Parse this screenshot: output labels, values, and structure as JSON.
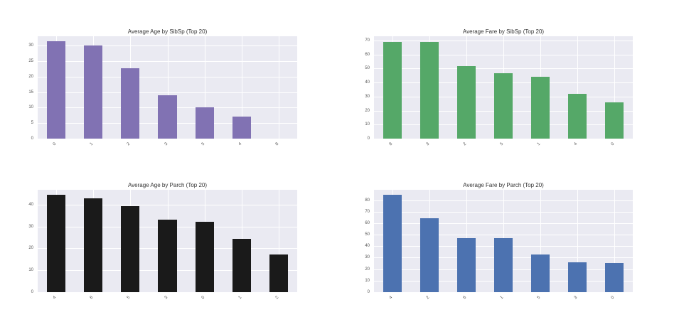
{
  "chart_data": [
    {
      "id": "age_sibsp",
      "type": "bar",
      "title": "Average Age by SibSp (Top 20)",
      "xlabel": "",
      "ylabel": "",
      "categories": [
        "0",
        "1",
        "2",
        "3",
        "5",
        "4",
        "8"
      ],
      "values": [
        31.4,
        30.1,
        22.6,
        13.9,
        10.2,
        7.2,
        0
      ],
      "yticks": [
        0,
        5,
        10,
        15,
        20,
        25,
        30
      ],
      "ylim": [
        0,
        33
      ],
      "color": "#8172b3",
      "grid": true,
      "legend": null
    },
    {
      "id": "fare_sibsp",
      "type": "bar",
      "title": "Average Fare by SibSp (Top 20)",
      "xlabel": "",
      "ylabel": "",
      "categories": [
        "8",
        "3",
        "2",
        "5",
        "1",
        "4",
        "0"
      ],
      "values": [
        69.1,
        68.9,
        51.9,
        46.9,
        44.1,
        31.9,
        25.7
      ],
      "yticks": [
        0,
        10,
        20,
        30,
        40,
        50,
        60,
        70
      ],
      "ylim": [
        0,
        73
      ],
      "color": "#55a868",
      "grid": true,
      "legend": null
    },
    {
      "id": "age_parch",
      "type": "bar",
      "title": "Average Age by Parch (Top 20)",
      "xlabel": "",
      "ylabel": "",
      "categories": [
        "4",
        "6",
        "5",
        "3",
        "0",
        "1",
        "2"
      ],
      "values": [
        44.5,
        43.0,
        39.2,
        33.2,
        32.2,
        24.4,
        17.2
      ],
      "yticks": [
        0,
        10,
        20,
        30,
        40
      ],
      "ylim": [
        0,
        46.8
      ],
      "color": "#1a1a1a",
      "grid": true,
      "legend": null
    },
    {
      "id": "fare_parch",
      "type": "bar",
      "title": "Average Fare by Parch (Top 20)",
      "xlabel": "",
      "ylabel": "",
      "categories": [
        "4",
        "2",
        "6",
        "1",
        "5",
        "3",
        "0"
      ],
      "values": [
        84.7,
        64.3,
        46.9,
        46.8,
        32.6,
        25.9,
        25.6
      ],
      "yticks": [
        0,
        10,
        20,
        30,
        40,
        50,
        60,
        70,
        80
      ],
      "ylim": [
        0,
        89
      ],
      "color": "#4c72b0",
      "grid": true,
      "legend": null
    }
  ]
}
